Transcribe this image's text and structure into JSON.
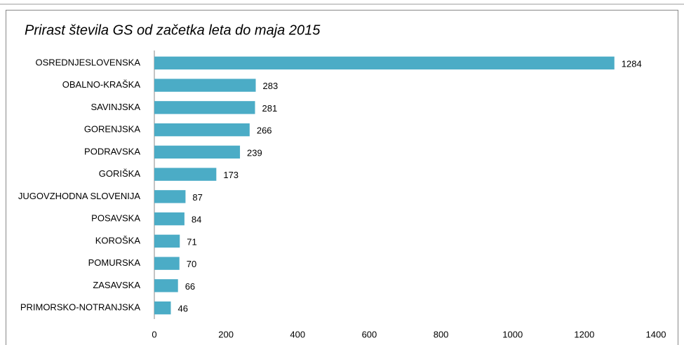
{
  "chart_data": {
    "type": "bar",
    "orientation": "horizontal",
    "title": "Prirast števila GS od začetka leta do  maja 2015",
    "categories": [
      "OSREDNJESLOVENSKA",
      "OBALNO-KRAŠKA",
      "SAVINJSKA",
      "GORENJSKA",
      "PODRAVSKA",
      "GORIŠKA",
      "JUGOVZHODNA  SLOVENIJA",
      "POSAVSKA",
      "KOROŠKA",
      "POMURSKA",
      "ZASAVSKA",
      "PRIMORSKO-NOTRANJSKA"
    ],
    "values": [
      1284,
      283,
      281,
      266,
      239,
      173,
      87,
      84,
      71,
      70,
      66,
      46
    ],
    "color": "#4bacc6",
    "xlim": [
      0,
      1400
    ],
    "xticks": [
      0,
      200,
      400,
      600,
      800,
      1000,
      1200,
      1400
    ],
    "grid": false
  }
}
